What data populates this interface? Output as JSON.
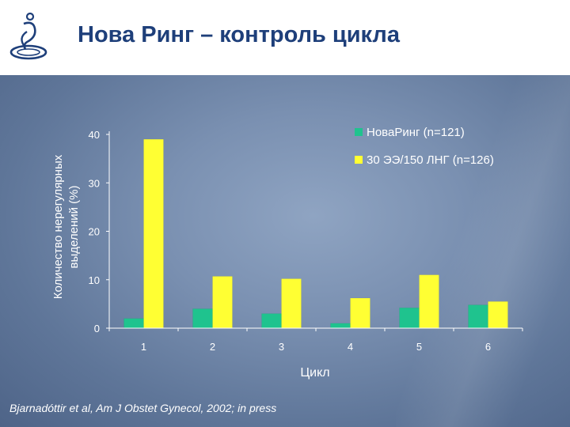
{
  "slide": {
    "title": "Нова Ринг – контроль цикла",
    "citation": "Bjarnadóttir et al, Am J Obstet Gynecol, 2002; in press"
  },
  "colors": {
    "title": "#1e3f7a",
    "series1": "#1fc38e",
    "series2": "#ffff33",
    "axis": "#ffffff"
  },
  "chart_data": {
    "type": "bar",
    "title": "",
    "xlabel": "Цикл",
    "ylabel": "Количество нерегулярных выделений (%)",
    "ylabel_lines": [
      "Количество нерегулярных",
      "выделений (%)"
    ],
    "categories": [
      "1",
      "2",
      "3",
      "4",
      "5",
      "6"
    ],
    "ylim": [
      0,
      40
    ],
    "yticks": [
      "0",
      "10",
      "20",
      "30",
      "40"
    ],
    "grid": false,
    "legend_position": "top-right",
    "series": [
      {
        "name": "НоваРинг (n=121)",
        "values": [
          2,
          4,
          3,
          1,
          4.2,
          4.8
        ]
      },
      {
        "name": "30 ЭЭ/150 ЛНГ (n=126)",
        "values": [
          39,
          10.7,
          10.2,
          6.2,
          11,
          5.5
        ]
      }
    ]
  }
}
